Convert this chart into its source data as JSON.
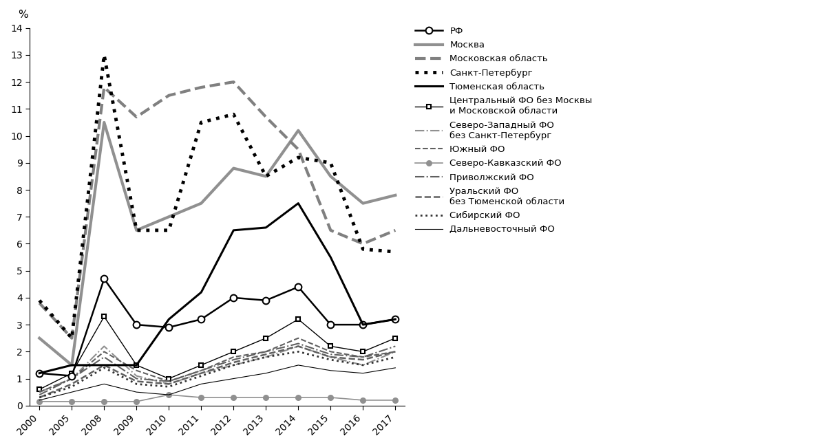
{
  "x_labels": [
    "2000",
    "2005",
    "2008",
    "2009",
    "2010",
    "2011",
    "2012",
    "2013",
    "2014",
    "2015",
    "2016",
    "2017"
  ],
  "series": [
    {
      "name": "РФ",
      "values": [
        1.2,
        1.1,
        4.7,
        3.0,
        2.9,
        3.2,
        4.0,
        3.9,
        4.4,
        3.0,
        3.0,
        3.2
      ],
      "color": "#000000",
      "linestyle": "-",
      "linewidth": 1.8,
      "marker": "o",
      "markersize": 7,
      "markerfacecolor": "white",
      "markeredgecolor": "#000000",
      "zorder": 5
    },
    {
      "name": "Москва",
      "values": [
        2.5,
        1.5,
        10.5,
        6.5,
        7.0,
        7.5,
        8.8,
        8.5,
        10.2,
        8.5,
        7.5,
        7.8
      ],
      "color": "#909090",
      "linestyle": "-",
      "linewidth": 3.0,
      "marker": null,
      "markersize": 0,
      "zorder": 4
    },
    {
      "name": "Московская область",
      "values": [
        3.8,
        2.5,
        11.8,
        10.7,
        11.5,
        11.8,
        12.0,
        10.7,
        9.5,
        6.5,
        6.0,
        6.5
      ],
      "color": "#808080",
      "linestyle": "--",
      "linewidth": 3.0,
      "marker": null,
      "markersize": 0,
      "zorder": 4
    },
    {
      "name": "Санкт-Петербург",
      "values": [
        3.9,
        2.5,
        13.0,
        6.5,
        6.5,
        10.5,
        10.8,
        8.5,
        9.2,
        9.0,
        5.8,
        5.7
      ],
      "color": "#000000",
      "linestyle": ":",
      "linewidth": 3.5,
      "marker": null,
      "markersize": 0,
      "zorder": 5
    },
    {
      "name": "Тюменская область",
      "values": [
        1.2,
        1.5,
        1.5,
        1.5,
        3.2,
        4.2,
        6.5,
        6.6,
        7.5,
        5.5,
        3.0,
        3.2
      ],
      "color": "#000000",
      "linestyle": "-",
      "linewidth": 2.2,
      "marker": null,
      "markersize": 0,
      "zorder": 5
    },
    {
      "name": "Центральный ФО без Москвы\nи Московской области",
      "values": [
        0.6,
        1.2,
        3.3,
        1.5,
        1.0,
        1.5,
        2.0,
        2.5,
        3.2,
        2.2,
        2.0,
        2.5
      ],
      "color": "#000000",
      "linestyle": "-",
      "linewidth": 1.0,
      "marker": "s",
      "markersize": 5,
      "markerfacecolor": "white",
      "markeredgecolor": "#000000",
      "zorder": 3
    },
    {
      "name": "Северо-Западный ФО\nбез Санкт-Петербург",
      "values": [
        0.5,
        1.0,
        2.2,
        1.1,
        0.8,
        1.2,
        1.5,
        1.8,
        2.2,
        1.8,
        1.5,
        2.0
      ],
      "color": "#909090",
      "linestyle": "-.",
      "linewidth": 1.5,
      "marker": null,
      "markersize": 0,
      "zorder": 3
    },
    {
      "name": "Южный ФО",
      "values": [
        0.5,
        1.0,
        2.0,
        1.3,
        0.9,
        1.3,
        1.8,
        2.0,
        2.5,
        2.0,
        1.8,
        2.0
      ],
      "color": "#606060",
      "linestyle": "--",
      "linewidth": 1.5,
      "marker": null,
      "markersize": 0,
      "zorder": 3
    },
    {
      "name": "Северо-Кавказский ФО",
      "values": [
        0.15,
        0.15,
        0.15,
        0.15,
        0.4,
        0.3,
        0.3,
        0.3,
        0.3,
        0.3,
        0.2,
        0.2
      ],
      "color": "#909090",
      "linestyle": "-",
      "linewidth": 1.2,
      "marker": "o",
      "markersize": 5,
      "markerfacecolor": "#909090",
      "markeredgecolor": "#909090",
      "zorder": 2
    },
    {
      "name": "Приволжский ФО",
      "values": [
        0.4,
        1.0,
        1.8,
        1.0,
        0.9,
        1.3,
        1.7,
        2.0,
        2.3,
        1.9,
        1.8,
        2.2
      ],
      "color": "#606060",
      "linestyle": "-.",
      "linewidth": 1.5,
      "marker": null,
      "markersize": 0,
      "zorder": 3
    },
    {
      "name": "Уральский ФО\nбез Тюменской области",
      "values": [
        0.3,
        0.8,
        1.5,
        0.9,
        0.8,
        1.2,
        1.6,
        1.9,
        2.2,
        1.8,
        1.7,
        2.0
      ],
      "color": "#606060",
      "linestyle": "--",
      "linewidth": 1.8,
      "marker": null,
      "markersize": 0,
      "zorder": 3
    },
    {
      "name": "Сибирский ФО",
      "values": [
        0.3,
        0.7,
        1.4,
        0.8,
        0.7,
        1.1,
        1.5,
        1.8,
        2.0,
        1.7,
        1.5,
        1.8
      ],
      "color": "#333333",
      "linestyle": ":",
      "linewidth": 2.0,
      "marker": null,
      "markersize": 0,
      "zorder": 3
    },
    {
      "name": "Дальневосточный ФО",
      "values": [
        0.2,
        0.5,
        0.8,
        0.5,
        0.4,
        0.8,
        1.0,
        1.2,
        1.5,
        1.3,
        1.2,
        1.4
      ],
      "color": "#000000",
      "linestyle": "-",
      "linewidth": 0.8,
      "marker": null,
      "markersize": 0,
      "zorder": 2
    }
  ],
  "ylim": [
    0,
    14
  ],
  "yticks": [
    0,
    1,
    2,
    3,
    4,
    5,
    6,
    7,
    8,
    9,
    10,
    11,
    12,
    13,
    14
  ],
  "ylabel": "%",
  "background_color": "#ffffff",
  "legend_fontsize": 9.5,
  "axis_fontsize": 10
}
